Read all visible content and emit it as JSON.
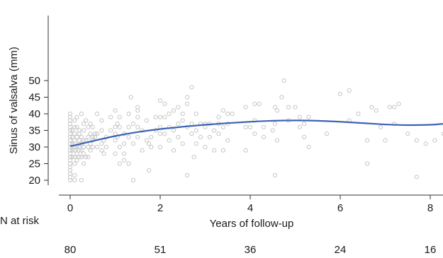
{
  "chart_data": {
    "type": "scatter",
    "xlabel": "Years of follow-up",
    "ylabel": "Sinus of valsalva (mm)",
    "xlim": [
      -0.3,
      8.3
    ],
    "ylim": [
      19,
      51
    ],
    "xticks": [
      0,
      2,
      4,
      6,
      8
    ],
    "yticks": [
      20,
      25,
      30,
      35,
      40,
      45,
      50
    ],
    "colors": {
      "points": "#c6c6c6",
      "fit": "#3b63b5",
      "axis": "#333333"
    },
    "fit_curve": {
      "x": [
        0,
        0.5,
        1,
        1.5,
        2,
        2.5,
        3,
        3.5,
        4,
        4.5,
        5,
        5.5,
        6,
        6.5,
        7,
        7.5,
        8,
        8.3
      ],
      "y": [
        30.2,
        31.8,
        33.3,
        34.5,
        35.4,
        36.1,
        36.7,
        37.2,
        37.6,
        37.9,
        38.0,
        37.9,
        37.6,
        37.2,
        36.8,
        36.6,
        36.7,
        37.0
      ]
    },
    "points": [
      [
        0,
        20
      ],
      [
        0,
        21
      ],
      [
        0,
        22
      ],
      [
        0,
        23
      ],
      [
        0,
        24
      ],
      [
        0,
        25
      ],
      [
        0,
        26
      ],
      [
        0,
        27
      ],
      [
        0,
        28
      ],
      [
        0,
        29
      ],
      [
        0,
        30
      ],
      [
        0,
        31
      ],
      [
        0,
        32
      ],
      [
        0,
        33
      ],
      [
        0,
        34
      ],
      [
        0,
        35
      ],
      [
        0,
        36
      ],
      [
        0,
        37
      ],
      [
        0,
        38
      ],
      [
        0,
        39
      ],
      [
        0,
        40
      ],
      [
        0.05,
        27
      ],
      [
        0.05,
        29
      ],
      [
        0.05,
        31
      ],
      [
        0.05,
        33
      ],
      [
        0.05,
        35
      ],
      [
        0.1,
        20
      ],
      [
        0.1,
        21.5
      ],
      [
        0.1,
        25
      ],
      [
        0.1,
        27
      ],
      [
        0.1,
        29
      ],
      [
        0.1,
        30
      ],
      [
        0.1,
        31
      ],
      [
        0.1,
        32
      ],
      [
        0.1,
        34
      ],
      [
        0.1,
        36
      ],
      [
        0.1,
        38
      ],
      [
        0.15,
        26
      ],
      [
        0.15,
        28
      ],
      [
        0.15,
        30
      ],
      [
        0.15,
        33
      ],
      [
        0.15,
        36
      ],
      [
        0.15,
        39
      ],
      [
        0.2,
        27
      ],
      [
        0.2,
        29
      ],
      [
        0.2,
        30
      ],
      [
        0.2,
        31
      ],
      [
        0.2,
        32
      ],
      [
        0.2,
        34
      ],
      [
        0.2,
        35
      ],
      [
        0.25,
        20
      ],
      [
        0.25,
        27
      ],
      [
        0.25,
        29
      ],
      [
        0.25,
        31
      ],
      [
        0.25,
        33
      ],
      [
        0.25,
        40
      ],
      [
        0.3,
        25
      ],
      [
        0.3,
        28
      ],
      [
        0.3,
        30
      ],
      [
        0.3,
        32
      ],
      [
        0.3,
        35
      ],
      [
        0.3,
        37
      ],
      [
        0.35,
        27
      ],
      [
        0.35,
        32
      ],
      [
        0.35,
        38
      ],
      [
        0.4,
        27
      ],
      [
        0.4,
        30
      ],
      [
        0.4,
        33
      ],
      [
        0.4,
        36
      ],
      [
        0.45,
        29
      ],
      [
        0.45,
        31
      ],
      [
        0.45,
        34
      ],
      [
        0.45,
        37
      ],
      [
        0.5,
        30
      ],
      [
        0.5,
        32
      ],
      [
        0.5,
        33
      ],
      [
        0.5,
        36
      ],
      [
        0.55,
        33
      ],
      [
        0.55,
        34
      ],
      [
        0.6,
        30
      ],
      [
        0.6,
        34
      ],
      [
        0.6,
        40
      ],
      [
        0.7,
        29
      ],
      [
        0.7,
        31
      ],
      [
        0.7,
        35
      ],
      [
        0.7,
        38
      ],
      [
        0.75,
        28
      ],
      [
        0.75,
        32
      ],
      [
        0.8,
        30
      ],
      [
        0.8,
        33
      ],
      [
        0.9,
        35
      ],
      [
        0.9,
        39
      ],
      [
        1.0,
        28
      ],
      [
        1.0,
        32
      ],
      [
        1.0,
        34
      ],
      [
        1.0,
        36
      ],
      [
        1.0,
        41
      ],
      [
        1.05,
        33
      ],
      [
        1.05,
        37
      ],
      [
        1.1,
        25
      ],
      [
        1.1,
        30
      ],
      [
        1.1,
        36
      ],
      [
        1.1,
        39
      ],
      [
        1.2,
        26
      ],
      [
        1.2,
        28
      ],
      [
        1.2,
        31
      ],
      [
        1.2,
        34
      ],
      [
        1.3,
        25
      ],
      [
        1.3,
        33
      ],
      [
        1.3,
        36
      ],
      [
        1.3,
        40
      ],
      [
        1.35,
        45
      ],
      [
        1.4,
        20
      ],
      [
        1.4,
        31
      ],
      [
        1.4,
        37
      ],
      [
        1.5,
        33
      ],
      [
        1.5,
        36
      ],
      [
        1.5,
        39
      ],
      [
        1.5,
        41
      ],
      [
        1.5,
        42
      ],
      [
        1.6,
        29
      ],
      [
        1.6,
        35
      ],
      [
        1.7,
        32
      ],
      [
        1.7,
        38
      ],
      [
        1.75,
        23
      ],
      [
        1.75,
        31
      ],
      [
        1.8,
        30
      ],
      [
        1.8,
        33
      ],
      [
        1.9,
        35
      ],
      [
        1.9,
        39
      ],
      [
        2.0,
        30
      ],
      [
        2.0,
        34
      ],
      [
        2.0,
        36
      ],
      [
        2.0,
        39
      ],
      [
        2.0,
        44
      ],
      [
        2.1,
        34
      ],
      [
        2.1,
        39
      ],
      [
        2.1,
        43
      ],
      [
        2.2,
        32
      ],
      [
        2.2,
        36
      ],
      [
        2.2,
        40
      ],
      [
        2.3,
        29
      ],
      [
        2.3,
        35
      ],
      [
        2.3,
        41
      ],
      [
        2.4,
        33
      ],
      [
        2.4,
        37
      ],
      [
        2.4,
        42
      ],
      [
        2.5,
        31
      ],
      [
        2.5,
        38
      ],
      [
        2.5,
        40
      ],
      [
        2.6,
        21.5
      ],
      [
        2.6,
        36
      ],
      [
        2.6,
        43
      ],
      [
        2.6,
        45
      ],
      [
        2.7,
        34
      ],
      [
        2.7,
        37
      ],
      [
        2.7,
        48
      ],
      [
        2.75,
        27
      ],
      [
        2.8,
        31
      ],
      [
        2.8,
        35
      ],
      [
        2.8,
        40
      ],
      [
        2.9,
        33
      ],
      [
        2.9,
        37
      ],
      [
        3.0,
        30
      ],
      [
        3.0,
        36
      ],
      [
        3.0,
        37
      ],
      [
        3.1,
        33
      ],
      [
        3.1,
        37
      ],
      [
        3.2,
        29
      ],
      [
        3.2,
        35
      ],
      [
        3.3,
        34
      ],
      [
        3.3,
        37
      ],
      [
        3.3,
        39
      ],
      [
        3.4,
        29
      ],
      [
        3.4,
        36
      ],
      [
        3.4,
        41
      ],
      [
        3.5,
        32
      ],
      [
        3.5,
        37
      ],
      [
        3.5,
        40
      ],
      [
        3.6,
        40
      ],
      [
        3.9,
        29
      ],
      [
        3.9,
        36
      ],
      [
        3.9,
        42
      ],
      [
        4.0,
        36
      ],
      [
        4.1,
        34
      ],
      [
        4.1,
        38
      ],
      [
        4.1,
        43
      ],
      [
        4.2,
        43
      ],
      [
        4.3,
        33
      ],
      [
        4.3,
        36
      ],
      [
        4.5,
        35
      ],
      [
        4.55,
        21.5
      ],
      [
        4.55,
        37
      ],
      [
        4.55,
        42
      ],
      [
        4.6,
        32
      ],
      [
        4.6,
        41
      ],
      [
        4.7,
        45
      ],
      [
        4.75,
        50
      ],
      [
        4.85,
        38
      ],
      [
        4.85,
        42
      ],
      [
        5.0,
        42
      ],
      [
        5.1,
        36
      ],
      [
        5.1,
        39
      ],
      [
        5.2,
        33
      ],
      [
        5.2,
        37
      ],
      [
        5.3,
        30
      ],
      [
        5.3,
        39
      ],
      [
        5.7,
        34
      ],
      [
        6.0,
        46
      ],
      [
        6.2,
        38
      ],
      [
        6.2,
        47
      ],
      [
        6.4,
        40
      ],
      [
        6.6,
        25
      ],
      [
        6.6,
        32
      ],
      [
        6.7,
        42
      ],
      [
        6.8,
        41
      ],
      [
        6.9,
        36
      ],
      [
        7.0,
        32
      ],
      [
        7.1,
        42
      ],
      [
        7.2,
        37
      ],
      [
        7.2,
        42
      ],
      [
        7.3,
        43
      ],
      [
        7.5,
        34
      ],
      [
        7.7,
        21
      ],
      [
        7.7,
        32
      ],
      [
        7.9,
        31
      ],
      [
        8.1,
        32
      ],
      [
        8.3,
        34
      ]
    ]
  },
  "risk_table": {
    "title": "N at risk",
    "entries": [
      {
        "x": 0,
        "n": "80"
      },
      {
        "x": 2,
        "n": "51"
      },
      {
        "x": 4,
        "n": "36"
      },
      {
        "x": 6,
        "n": "24"
      },
      {
        "x": 8,
        "n": "16"
      }
    ]
  }
}
